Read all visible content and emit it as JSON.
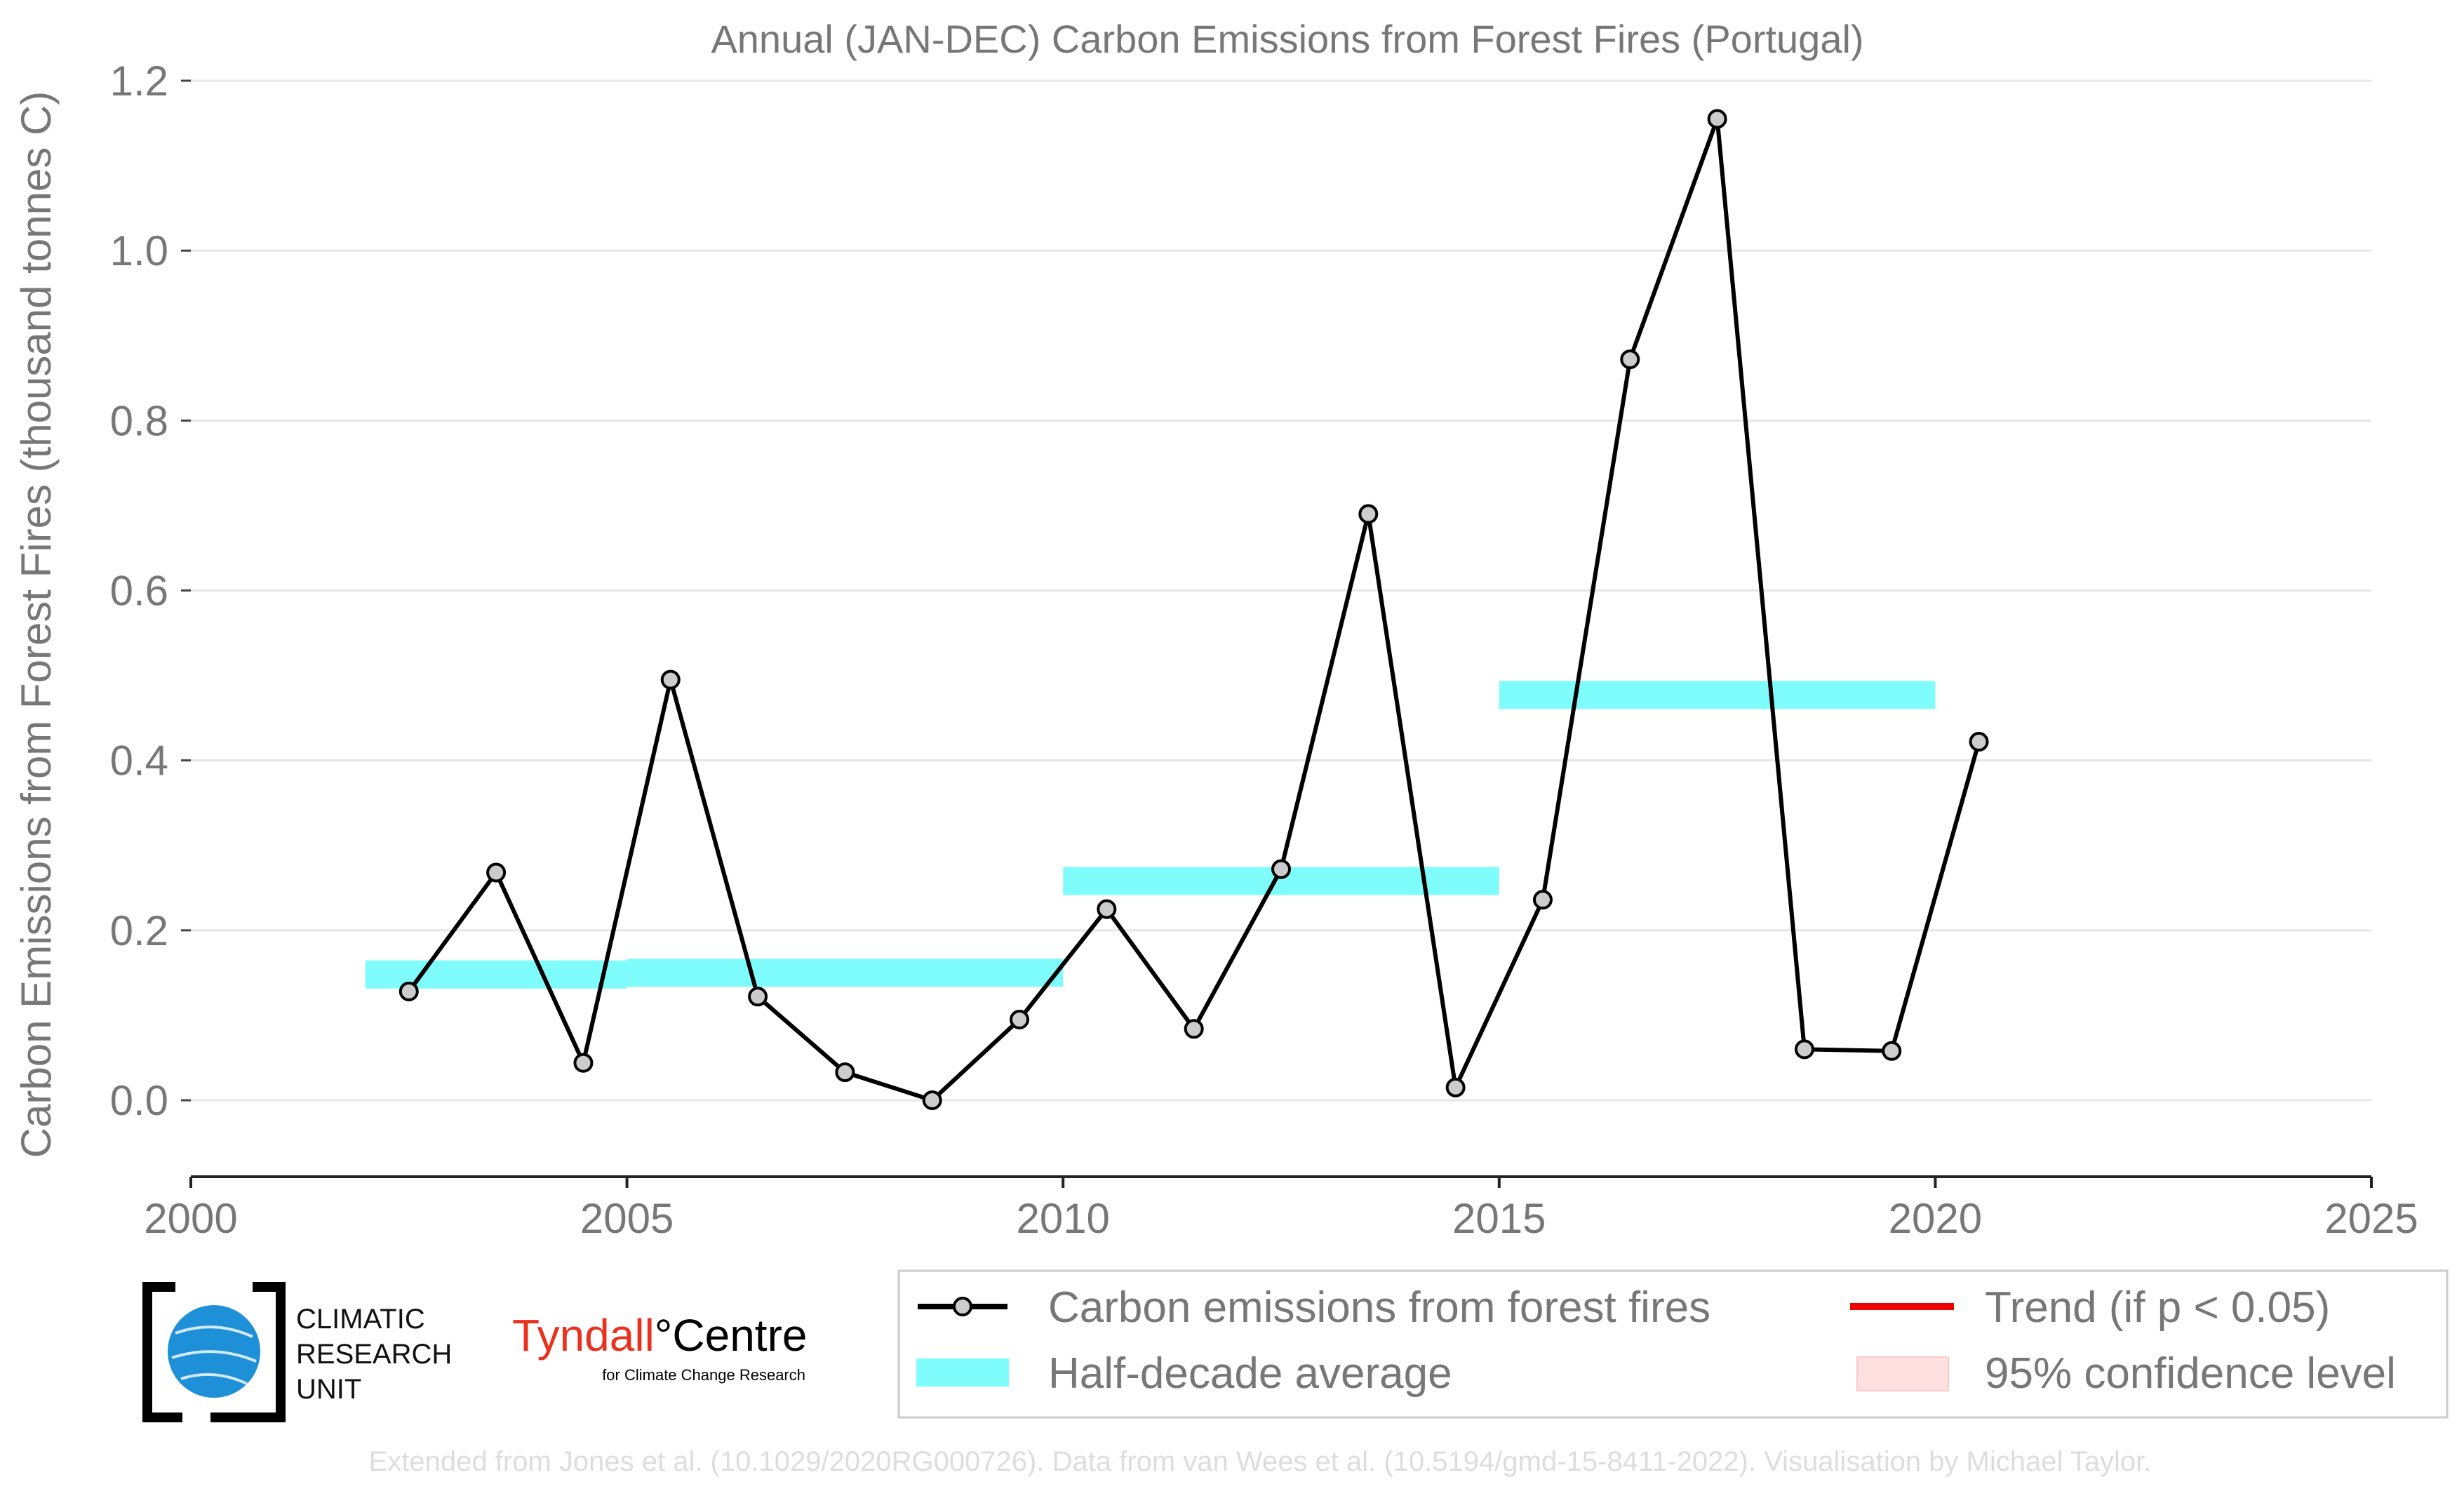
{
  "chart_data": {
    "type": "line",
    "title": "Annual (JAN-DEC) Carbon Emissions from Forest Fires (Portugal)",
    "xlabel": "",
    "ylabel": "Carbon Emissions from Forest Fires (thousand tonnes C)",
    "xlim": [
      2000,
      2025
    ],
    "ylim": [
      -0.09,
      1.2
    ],
    "xticks": [
      "2000",
      "2005",
      "2010",
      "2015",
      "2020",
      "2025"
    ],
    "yticks": [
      "0.0",
      "0.2",
      "0.4",
      "0.6",
      "0.8",
      "1.0",
      "1.2"
    ],
    "grid": "horizontal",
    "series": [
      {
        "name": "Carbon emissions from forest fires",
        "color": "#000000",
        "marker_fill": "#cccccc",
        "x": [
          2002.5,
          2003.5,
          2004.5,
          2005.5,
          2006.5,
          2007.5,
          2008.5,
          2009.5,
          2010.5,
          2011.5,
          2012.5,
          2013.5,
          2014.5,
          2015.5,
          2016.5,
          2017.5,
          2018.5,
          2019.5,
          2020.5
        ],
        "values": [
          0.128,
          0.268,
          0.044,
          0.495,
          0.122,
          0.033,
          0.0,
          0.095,
          0.225,
          0.084,
          0.272,
          0.69,
          0.015,
          0.236,
          0.872,
          1.155,
          0.06,
          0.058,
          0.422
        ]
      },
      {
        "name": "Half-decade average",
        "color": "#7ffcfc",
        "segments": [
          {
            "x0": 2002,
            "x1": 2005,
            "value": 0.148
          },
          {
            "x0": 2005,
            "x1": 2010,
            "value": 0.15
          },
          {
            "x0": 2010,
            "x1": 2015,
            "value": 0.258
          },
          {
            "x0": 2015,
            "x1": 2020,
            "value": 0.477
          }
        ]
      }
    ],
    "legend": {
      "placement": "bottom-right",
      "items": [
        {
          "label": "Carbon emissions from forest fires",
          "color": "#000000"
        },
        {
          "label": "Trend (if p < 0.05)",
          "color": "#ee0000"
        },
        {
          "label": "Half-decade average",
          "color": "#7ffcfc"
        },
        {
          "label": "95% confidence level",
          "color": "#ffe0e0"
        }
      ]
    }
  },
  "logos": {
    "cru": [
      "CLIMATIC",
      "RESEARCH",
      "UNIT"
    ],
    "tyndall_main": "Tyndall",
    "tyndall_centre": "°Centre",
    "tyndall_sub": "for Climate Change Research"
  },
  "footer": "Extended from Jones et al. (10.1029/2020RG000726). Data from van Wees et al. (10.5194/gmd-15-8411-2022). Visualisation by Michael Taylor."
}
